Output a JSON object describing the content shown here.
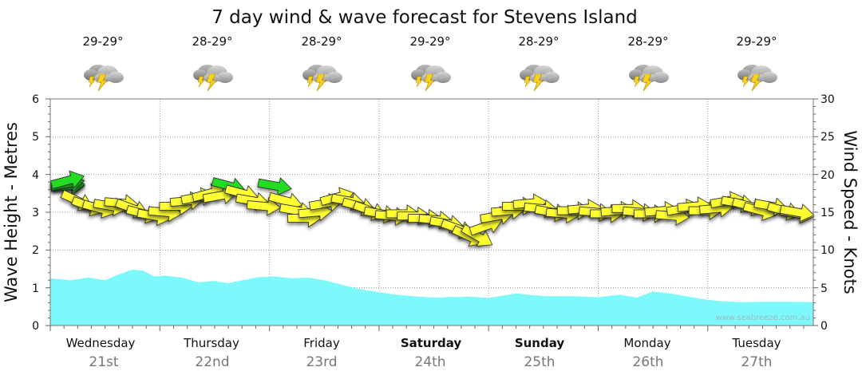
{
  "chart_data": {
    "type": "area",
    "title": "7 day wind & wave forecast for Stevens Island",
    "ylabel_left": "Wave Height - Metres",
    "ylabel_right": "Wind Speed - Knots",
    "ylim_left": [
      0,
      6
    ],
    "ylim_right": [
      0,
      30
    ],
    "yticks_left": [
      "0",
      "1",
      "2",
      "3",
      "4",
      "5",
      "6"
    ],
    "yticks_right": [
      "0",
      "5",
      "10",
      "15",
      "20",
      "25",
      "30"
    ],
    "grid": true,
    "watermark": "www.seabreeze.com.au",
    "days": [
      {
        "name": "Wednesday",
        "date": "21st",
        "temp": "29-29°",
        "icon": "thunderstorm-icon",
        "bold": false
      },
      {
        "name": "Thursday",
        "date": "22nd",
        "temp": "28-29°",
        "icon": "thunderstorm-icon",
        "bold": false
      },
      {
        "name": "Friday",
        "date": "23rd",
        "temp": "28-29°",
        "icon": "thunderstorm-icon",
        "bold": false
      },
      {
        "name": "Saturday",
        "date": "24th",
        "temp": "29-29°",
        "icon": "thunderstorm-icon",
        "bold": true
      },
      {
        "name": "Sunday",
        "date": "25th",
        "temp": "28-29°",
        "icon": "thunderstorm-icon",
        "bold": true
      },
      {
        "name": "Monday",
        "date": "26th",
        "temp": "28-29°",
        "icon": "thunderstorm-icon",
        "bold": false
      },
      {
        "name": "Tuesday",
        "date": "27th",
        "temp": "29-29°",
        "icon": "thunderstorm-icon",
        "bold": false
      }
    ],
    "wave_series": {
      "name": "Wave Height",
      "color": "#7ef9fb",
      "t_days": [
        0,
        0.18,
        0.35,
        0.5,
        0.62,
        0.75,
        0.85,
        0.95,
        1.05,
        1.2,
        1.35,
        1.5,
        1.62,
        1.75,
        1.9,
        2.05,
        2.2,
        2.35,
        2.5,
        2.7,
        2.85,
        3.0,
        3.15,
        3.3,
        3.45,
        3.55,
        3.65,
        3.72,
        3.8,
        3.9,
        4.0,
        4.1,
        4.25,
        4.5,
        4.75,
        5.0,
        5.2,
        5.35,
        5.5,
        5.65,
        5.8,
        5.95,
        6.1,
        6.3,
        6.5,
        6.75,
        7.0
      ],
      "values": [
        1.25,
        1.2,
        1.27,
        1.2,
        1.35,
        1.48,
        1.45,
        1.3,
        1.32,
        1.27,
        1.15,
        1.18,
        1.12,
        1.2,
        1.28,
        1.3,
        1.25,
        1.27,
        1.2,
        1.05,
        0.95,
        0.88,
        0.82,
        0.78,
        0.75,
        0.74,
        0.76,
        0.75,
        0.77,
        0.75,
        0.73,
        0.78,
        0.85,
        0.78,
        0.78,
        0.75,
        0.82,
        0.74,
        0.9,
        0.85,
        0.78,
        0.7,
        0.65,
        0.62,
        0.63,
        0.63,
        0.62
      ]
    },
    "wind_series": {
      "name": "Wind Speed",
      "unit": "knots",
      "points": [
        {
          "t": -0.25,
          "kn": 18.5,
          "color": "#22dd22",
          "dir_deg": 0
        },
        {
          "t": -0.1,
          "kn": 18.5,
          "color": "#22dd22",
          "dir_deg": -5
        },
        {
          "t": 0.05,
          "kn": 18.8,
          "color": "#22dd22",
          "dir_deg": -10
        },
        {
          "t": 0.15,
          "kn": 19.2,
          "color": "#22dd22",
          "dir_deg": -15
        },
        {
          "t": 0.25,
          "kn": 16.5,
          "color": "#ffff33",
          "dir_deg": 25
        },
        {
          "t": 0.35,
          "kn": 15.8,
          "color": "#ffff33",
          "dir_deg": 20
        },
        {
          "t": 0.45,
          "kn": 15.5,
          "color": "#ffff33",
          "dir_deg": 15
        },
        {
          "t": 0.55,
          "kn": 15.8,
          "color": "#ffff33",
          "dir_deg": 10
        },
        {
          "t": 0.65,
          "kn": 16.2,
          "color": "#ffff33",
          "dir_deg": 5
        },
        {
          "t": 0.75,
          "kn": 15.5,
          "color": "#ffff33",
          "dir_deg": 20
        },
        {
          "t": 0.85,
          "kn": 14.8,
          "color": "#ffff33",
          "dir_deg": 15
        },
        {
          "t": 0.95,
          "kn": 14.5,
          "color": "#ffff33",
          "dir_deg": 10
        },
        {
          "t": 1.05,
          "kn": 15.0,
          "color": "#ffff33",
          "dir_deg": 5
        },
        {
          "t": 1.15,
          "kn": 15.8,
          "color": "#ffff33",
          "dir_deg": 0
        },
        {
          "t": 1.25,
          "kn": 16.5,
          "color": "#ffff33",
          "dir_deg": -5
        },
        {
          "t": 1.35,
          "kn": 17.0,
          "color": "#ffff33",
          "dir_deg": -10
        },
        {
          "t": 1.45,
          "kn": 17.5,
          "color": "#ffff33",
          "dir_deg": -15
        },
        {
          "t": 1.55,
          "kn": 17.2,
          "color": "#ffff33",
          "dir_deg": -10
        },
        {
          "t": 1.63,
          "kn": 18.5,
          "color": "#22dd22",
          "dir_deg": 15
        },
        {
          "t": 1.75,
          "kn": 17.5,
          "color": "#ffff33",
          "dir_deg": 15
        },
        {
          "t": 1.85,
          "kn": 16.5,
          "color": "#ffff33",
          "dir_deg": 10
        },
        {
          "t": 1.95,
          "kn": 15.8,
          "color": "#ffff33",
          "dir_deg": 5
        },
        {
          "t": 2.05,
          "kn": 18.5,
          "color": "#22dd22",
          "dir_deg": 10
        },
        {
          "t": 2.15,
          "kn": 16.5,
          "color": "#ffff33",
          "dir_deg": 15
        },
        {
          "t": 2.25,
          "kn": 15.2,
          "color": "#ffff33",
          "dir_deg": 10
        },
        {
          "t": 2.32,
          "kn": 14.2,
          "color": "#ffff33",
          "dir_deg": 0
        },
        {
          "t": 2.42,
          "kn": 15.0,
          "color": "#ffff33",
          "dir_deg": -5
        },
        {
          "t": 2.52,
          "kn": 16.2,
          "color": "#ffff33",
          "dir_deg": -10
        },
        {
          "t": 2.62,
          "kn": 17.0,
          "color": "#ffff33",
          "dir_deg": -15
        },
        {
          "t": 2.72,
          "kn": 16.5,
          "color": "#ffff33",
          "dir_deg": 10
        },
        {
          "t": 2.82,
          "kn": 15.8,
          "color": "#ffff33",
          "dir_deg": 15
        },
        {
          "t": 2.92,
          "kn": 15.2,
          "color": "#ffff33",
          "dir_deg": 20
        },
        {
          "t": 3.02,
          "kn": 14.8,
          "color": "#ffff33",
          "dir_deg": 10
        },
        {
          "t": 3.12,
          "kn": 14.5,
          "color": "#ffff33",
          "dir_deg": 5
        },
        {
          "t": 3.22,
          "kn": 14.8,
          "color": "#ffff33",
          "dir_deg": 0
        },
        {
          "t": 3.32,
          "kn": 14.5,
          "color": "#ffff33",
          "dir_deg": 0
        },
        {
          "t": 3.42,
          "kn": 14.2,
          "color": "#ffff33",
          "dir_deg": 0
        },
        {
          "t": 3.52,
          "kn": 14.0,
          "color": "#ffff33",
          "dir_deg": 5
        },
        {
          "t": 3.62,
          "kn": 13.5,
          "color": "#ffff33",
          "dir_deg": 10
        },
        {
          "t": 3.72,
          "kn": 12.8,
          "color": "#ffff33",
          "dir_deg": 20
        },
        {
          "t": 3.82,
          "kn": 11.8,
          "color": "#ffff33",
          "dir_deg": 25
        },
        {
          "t": 3.9,
          "kn": 11.8,
          "color": "#ffff33",
          "dir_deg": 30
        },
        {
          "t": 3.98,
          "kn": 13.2,
          "color": "#ffff33",
          "dir_deg": -20
        },
        {
          "t": 4.08,
          "kn": 14.5,
          "color": "#ffff33",
          "dir_deg": -10
        },
        {
          "t": 4.18,
          "kn": 15.2,
          "color": "#ffff33",
          "dir_deg": -5
        },
        {
          "t": 4.28,
          "kn": 15.8,
          "color": "#ffff33",
          "dir_deg": 0
        },
        {
          "t": 4.38,
          "kn": 16.2,
          "color": "#ffff33",
          "dir_deg": -5
        },
        {
          "t": 4.48,
          "kn": 15.5,
          "color": "#ffff33",
          "dir_deg": 5
        },
        {
          "t": 4.58,
          "kn": 15.0,
          "color": "#ffff33",
          "dir_deg": 10
        },
        {
          "t": 4.68,
          "kn": 14.8,
          "color": "#ffff33",
          "dir_deg": 5
        },
        {
          "t": 4.78,
          "kn": 15.2,
          "color": "#ffff33",
          "dir_deg": 0
        },
        {
          "t": 4.88,
          "kn": 15.5,
          "color": "#ffff33",
          "dir_deg": -5
        },
        {
          "t": 4.98,
          "kn": 15.0,
          "color": "#ffff33",
          "dir_deg": 5
        },
        {
          "t": 5.08,
          "kn": 14.8,
          "color": "#ffff33",
          "dir_deg": 0
        },
        {
          "t": 5.18,
          "kn": 15.2,
          "color": "#ffff33",
          "dir_deg": -5
        },
        {
          "t": 5.28,
          "kn": 15.5,
          "color": "#ffff33",
          "dir_deg": 0
        },
        {
          "t": 5.38,
          "kn": 15.0,
          "color": "#ffff33",
          "dir_deg": 5
        },
        {
          "t": 5.48,
          "kn": 14.8,
          "color": "#ffff33",
          "dir_deg": 0
        },
        {
          "t": 5.58,
          "kn": 15.2,
          "color": "#ffff33",
          "dir_deg": -5
        },
        {
          "t": 5.68,
          "kn": 14.5,
          "color": "#ffff33",
          "dir_deg": 5
        },
        {
          "t": 5.78,
          "kn": 15.5,
          "color": "#ffff33",
          "dir_deg": -10
        },
        {
          "t": 5.88,
          "kn": 15.8,
          "color": "#ffff33",
          "dir_deg": -5
        },
        {
          "t": 5.98,
          "kn": 15.2,
          "color": "#ffff33",
          "dir_deg": 0
        },
        {
          "t": 6.08,
          "kn": 15.5,
          "color": "#ffff33",
          "dir_deg": -5
        },
        {
          "t": 6.18,
          "kn": 16.5,
          "color": "#ffff33",
          "dir_deg": -10
        },
        {
          "t": 6.28,
          "kn": 16.2,
          "color": "#ffff33",
          "dir_deg": 10
        },
        {
          "t": 6.38,
          "kn": 15.8,
          "color": "#ffff33",
          "dir_deg": 15
        },
        {
          "t": 6.48,
          "kn": 15.2,
          "color": "#ffff33",
          "dir_deg": 15
        },
        {
          "t": 6.58,
          "kn": 15.8,
          "color": "#ffff33",
          "dir_deg": 10
        },
        {
          "t": 6.7,
          "kn": 15.2,
          "color": "#ffff33",
          "dir_deg": 15
        },
        {
          "t": 6.82,
          "kn": 14.8,
          "color": "#ffff33",
          "dir_deg": 10
        },
        {
          "t": 6.92,
          "kn": 15.0,
          "color": "#ffff33",
          "dir_deg": 10
        }
      ]
    }
  }
}
